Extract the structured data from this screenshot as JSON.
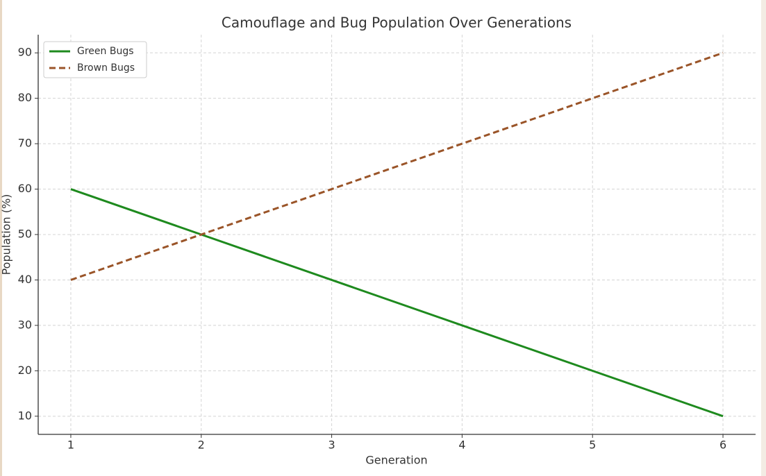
{
  "chart_data": {
    "type": "line",
    "title": "Camouflage and Bug Population Over Generations",
    "x_label": "Generation",
    "y_label": "Population (%)",
    "x": [
      1,
      2,
      3,
      4,
      5,
      6
    ],
    "series": [
      {
        "name": "Green Bugs",
        "color": "#1e8a1e",
        "linestyle": "solid",
        "values": [
          60,
          50,
          40,
          30,
          20,
          10
        ]
      },
      {
        "name": "Brown Bugs",
        "color": "#9a5428",
        "linestyle": "dashed",
        "values": [
          40,
          50,
          60,
          70,
          80,
          90
        ]
      }
    ],
    "xlim": [
      0.75,
      6.25
    ],
    "ylim": [
      6,
      94
    ],
    "xticks": [
      1,
      2,
      3,
      4,
      5,
      6
    ],
    "yticks": [
      10,
      20,
      30,
      40,
      50,
      60,
      70,
      80,
      90
    ],
    "grid": true,
    "legend": "upper left"
  }
}
